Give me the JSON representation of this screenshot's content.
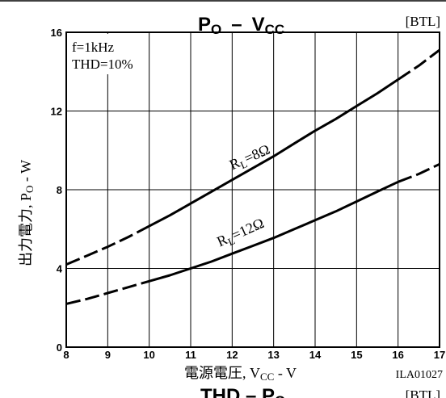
{
  "chart_data": {
    "type": "line",
    "title": "PO – VCC",
    "title_main": "P",
    "title_main_sub": "O",
    "title_dash": "–",
    "title_second": "V",
    "title_second_sub": "CC",
    "mode_label": "[BTL]",
    "conditions": [
      "f=1kHz",
      "THD=10%"
    ],
    "xlabel_prefix": "電源電圧, V",
    "xlabel_sub": "CC",
    "xlabel_suffix": " - V",
    "ylabel_prefix": "出力電力, P",
    "ylabel_sub": "O",
    "ylabel_suffix": " - W",
    "figure_id": "ILA01027",
    "next_title_fragment_main": "THD – P",
    "next_title_fragment_sub": "O",
    "next_mode_label": "[BTL]",
    "xlim": [
      8,
      17
    ],
    "ylim": [
      0,
      16
    ],
    "xticks": [
      8,
      9,
      10,
      11,
      12,
      13,
      14,
      15,
      16,
      17
    ],
    "yticks": [
      0,
      4,
      8,
      12,
      16
    ],
    "grid": true,
    "series": [
      {
        "label_main": "R",
        "label_sub": "L",
        "label_suffix": "=8Ω",
        "label_at": [
          12.0,
          9.0
        ],
        "x": [
          8,
          8.5,
          9,
          9.5,
          10,
          10.5,
          11,
          11.5,
          12,
          12.5,
          13,
          13.5,
          14,
          14.5,
          15,
          15.5,
          16,
          16.5,
          17
        ],
        "y": [
          4.2,
          4.65,
          5.1,
          5.6,
          6.15,
          6.7,
          7.3,
          7.9,
          8.5,
          9.1,
          9.7,
          10.35,
          11.0,
          11.6,
          12.25,
          12.9,
          13.6,
          14.3,
          15.1
        ],
        "dashed_ranges": [
          [
            8,
            10
          ],
          [
            16,
            17
          ]
        ]
      },
      {
        "label_main": "R",
        "label_sub": "L",
        "label_suffix": "=12Ω",
        "label_at": [
          11.7,
          5.1
        ],
        "x": [
          8,
          8.5,
          9,
          9.5,
          10,
          10.5,
          11,
          11.5,
          12,
          12.5,
          13,
          13.5,
          14,
          14.5,
          15,
          15.5,
          16,
          16.5,
          17
        ],
        "y": [
          2.2,
          2.45,
          2.75,
          3.05,
          3.35,
          3.65,
          4.0,
          4.35,
          4.75,
          5.15,
          5.55,
          6.0,
          6.45,
          6.9,
          7.4,
          7.9,
          8.4,
          8.8,
          9.3
        ],
        "dashed_ranges": [
          [
            8,
            10
          ],
          [
            16,
            17
          ]
        ]
      }
    ]
  }
}
